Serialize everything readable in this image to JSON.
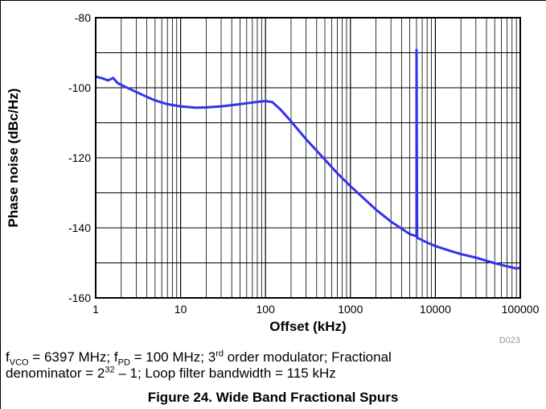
{
  "chart_data": {
    "type": "line",
    "title": "",
    "xlabel": "Offset (kHz)",
    "ylabel": "Phase noise (dBc/Hz)",
    "x_scale": "log",
    "xlim": [
      1,
      100000
    ],
    "ylim": [
      -160,
      -80
    ],
    "x_ticks": [
      1,
      10,
      100,
      1000,
      10000,
      100000
    ],
    "x_tick_labels": [
      "1",
      "10",
      "100",
      "1000",
      "10000",
      "100000"
    ],
    "y_ticks": [
      -80,
      -100,
      -120,
      -140,
      -160
    ],
    "y_tick_labels": [
      "-80",
      "-100",
      "-120",
      "-140",
      "-160"
    ],
    "grid": true,
    "legend": "none",
    "series_color": "#3333ee",
    "series": [
      {
        "x": [
          1,
          1.2,
          1.4,
          1.6,
          1.8,
          2,
          2.5,
          3,
          4,
          5,
          7,
          10,
          15,
          20,
          30,
          50,
          70,
          100,
          120,
          150,
          200,
          300,
          500,
          700,
          1000,
          2000,
          3000,
          5000,
          6000,
          6000,
          6100,
          8000,
          10000,
          15000,
          20000,
          30000,
          50000,
          70000,
          90000,
          100000
        ],
        "y": [
          -96.8,
          -97.3,
          -97.9,
          -97.2,
          -98.6,
          -99.2,
          -100.3,
          -101.2,
          -102.6,
          -103.6,
          -104.7,
          -105.3,
          -105.7,
          -105.6,
          -105.3,
          -104.7,
          -104.2,
          -103.8,
          -104.1,
          -106.2,
          -109.6,
          -114.7,
          -120.5,
          -124.4,
          -128.1,
          -134.8,
          -138.2,
          -141.8,
          -142.4,
          -89.2,
          -142.8,
          -144.2,
          -145.2,
          -146.6,
          -147.5,
          -148.5,
          -150.1,
          -151.0,
          -151.6,
          -151.4
        ]
      }
    ]
  },
  "watermark": "D023",
  "caption": {
    "line1": {
      "f1": "f",
      "s1": "VCO",
      "t1": " = 6397 MHz; f",
      "s2": "PD",
      "t2": " = 100 MHz; 3",
      "sup1": "rd",
      "t3": " order modulator; Fractional"
    },
    "line2": {
      "t1": "denominator = 2",
      "sup1": "32",
      "t2": " – 1; Loop filter bandwidth = 115 kHz"
    }
  },
  "figure_title": "Figure 24. Wide Band Fractional Spurs"
}
